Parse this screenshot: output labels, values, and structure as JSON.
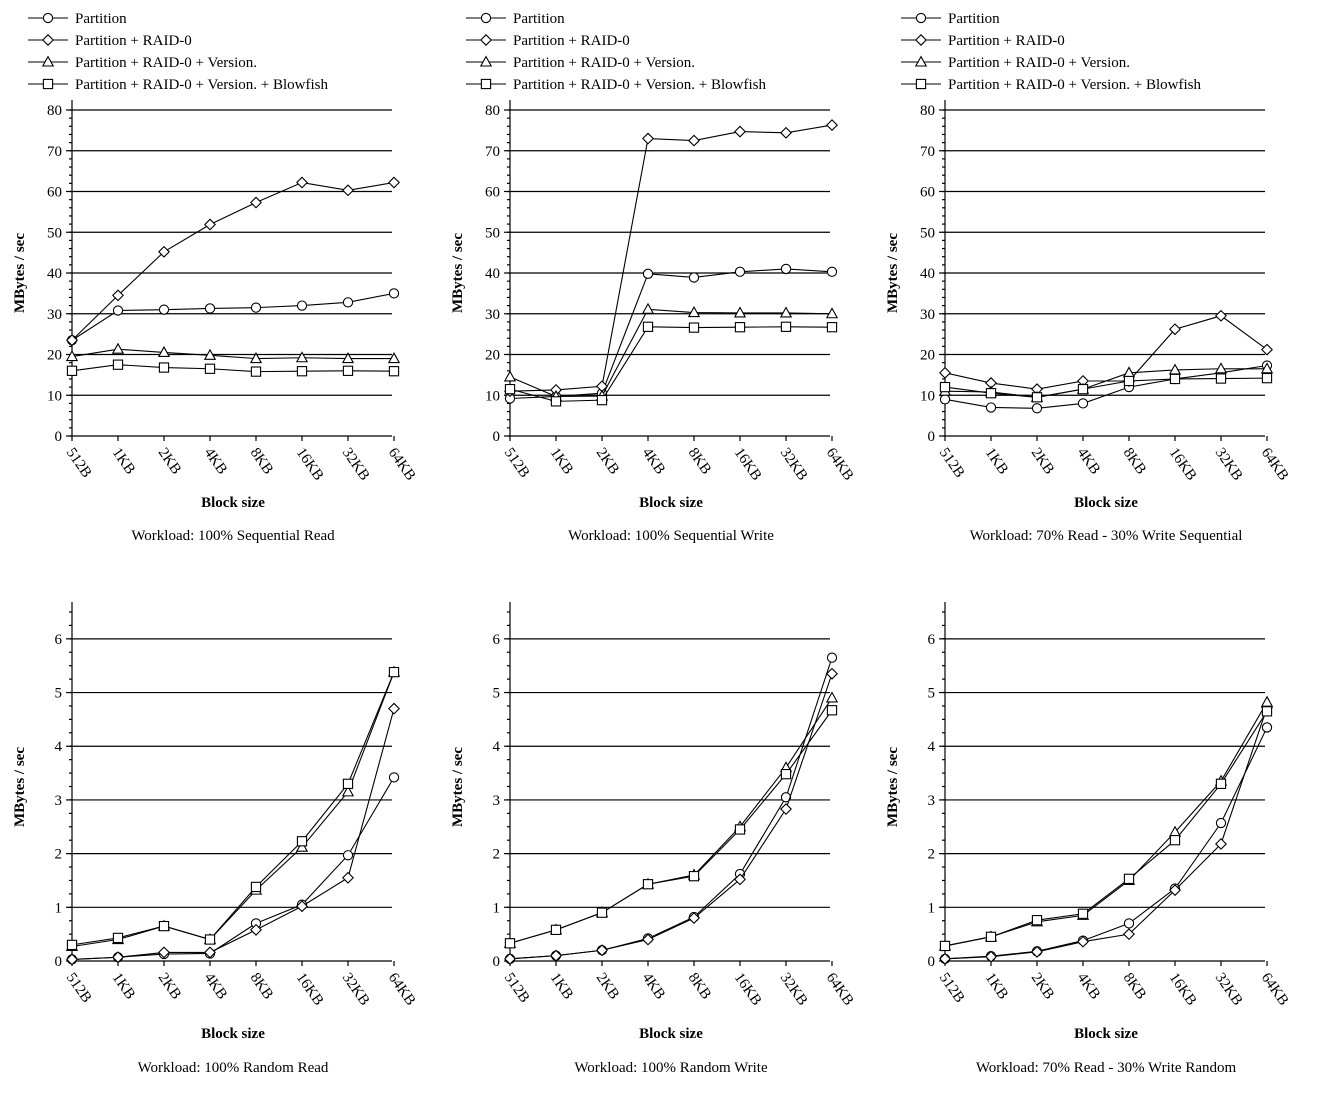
{
  "legend": [
    "Partition",
    "Partition + RAID-0",
    "Partition + RAID-0 + Version.",
    "Partition + RAID-0 + Version. + Blowfish"
  ],
  "markers": [
    "circle",
    "diamond",
    "triangle",
    "square"
  ],
  "chart_data": [
    {
      "type": "line",
      "caption": "Workload: 100% Sequential Read",
      "xlabel": "Block size",
      "ylabel": "MBytes / sec",
      "categories": [
        "512B",
        "1KB",
        "2KB",
        "4KB",
        "8KB",
        "16KB",
        "32KB",
        "64KB"
      ],
      "yticks": [
        0,
        10,
        20,
        30,
        40,
        50,
        60,
        70,
        80
      ],
      "ylim": [
        0,
        80
      ],
      "grid": true,
      "legend_position": "top",
      "series": [
        {
          "name": "Partition",
          "values": [
            23.5,
            30.8,
            31.0,
            31.3,
            31.5,
            32.0,
            32.8,
            35.0
          ]
        },
        {
          "name": "Partition + RAID-0",
          "values": [
            23.5,
            34.5,
            45.2,
            51.9,
            57.3,
            62.2,
            60.3,
            62.2
          ]
        },
        {
          "name": "Partition + RAID-0 + Version.",
          "values": [
            19.5,
            21.3,
            20.5,
            19.8,
            19.0,
            19.2,
            19.0,
            19.0
          ]
        },
        {
          "name": "Partition + RAID-0 + Version. + Blowfish",
          "values": [
            16.0,
            17.5,
            16.8,
            16.5,
            15.8,
            15.9,
            16.0,
            15.9
          ]
        }
      ]
    },
    {
      "type": "line",
      "caption": "Workload: 100% Sequential Write",
      "xlabel": "Block size",
      "ylabel": "MBytes / sec",
      "categories": [
        "512B",
        "1KB",
        "2KB",
        "4KB",
        "8KB",
        "16KB",
        "32KB",
        "64KB"
      ],
      "yticks": [
        0,
        10,
        20,
        30,
        40,
        50,
        60,
        70,
        80
      ],
      "ylim": [
        0,
        80
      ],
      "grid": true,
      "legend_position": "top",
      "series": [
        {
          "name": "Partition",
          "values": [
            9.2,
            9.7,
            10.5,
            39.8,
            38.9,
            40.3,
            41.0,
            40.3
          ]
        },
        {
          "name": "Partition + RAID-0",
          "values": [
            11.0,
            11.3,
            12.2,
            73.0,
            72.5,
            74.7,
            74.4,
            76.3
          ]
        },
        {
          "name": "Partition + RAID-0 + Version.",
          "values": [
            14.5,
            9.7,
            9.8,
            31.1,
            30.3,
            30.2,
            30.2,
            30.0
          ]
        },
        {
          "name": "Partition + RAID-0 + Version. + Blowfish",
          "values": [
            11.5,
            8.5,
            8.8,
            26.8,
            26.6,
            26.7,
            26.8,
            26.7
          ]
        }
      ]
    },
    {
      "type": "line",
      "caption": "Workload: 70% Read - 30% Write Sequential",
      "xlabel": "Block size",
      "ylabel": "MBytes / sec",
      "categories": [
        "512B",
        "1KB",
        "2KB",
        "4KB",
        "8KB",
        "16KB",
        "32KB",
        "64KB"
      ],
      "yticks": [
        0,
        10,
        20,
        30,
        40,
        50,
        60,
        70,
        80
      ],
      "ylim": [
        0,
        80
      ],
      "grid": true,
      "legend_position": "top",
      "series": [
        {
          "name": "Partition",
          "values": [
            9.0,
            7.0,
            6.8,
            8.0,
            12.0,
            14.0,
            15.5,
            17.3
          ]
        },
        {
          "name": "Partition + RAID-0",
          "values": [
            15.5,
            13.0,
            11.5,
            13.5,
            13.5,
            26.2,
            29.5,
            21.2
          ]
        },
        {
          "name": "Partition + RAID-0 + Version.",
          "values": [
            11.0,
            10.8,
            9.5,
            11.5,
            15.5,
            16.2,
            16.5,
            16.5
          ]
        },
        {
          "name": "Partition + RAID-0 + Version. + Blowfish",
          "values": [
            12.0,
            10.5,
            9.5,
            11.5,
            13.5,
            14.0,
            14.1,
            14.2
          ]
        }
      ]
    },
    {
      "type": "line",
      "caption": "Workload: 100% Random Read",
      "xlabel": "Block size",
      "ylabel": "MBytes / sec",
      "categories": [
        "512B",
        "1KB",
        "2KB",
        "4KB",
        "8KB",
        "16KB",
        "32KB",
        "64KB"
      ],
      "yticks": [
        0,
        1,
        2,
        3,
        4,
        5,
        6
      ],
      "ylim": [
        0,
        6.5
      ],
      "grid": true,
      "legend_position": "top",
      "series": [
        {
          "name": "Partition",
          "values": [
            0.03,
            0.07,
            0.13,
            0.14,
            0.7,
            1.05,
            1.97,
            3.42
          ]
        },
        {
          "name": "Partition + RAID-0",
          "values": [
            0.03,
            0.07,
            0.16,
            0.16,
            0.58,
            1.02,
            1.55,
            4.7
          ]
        },
        {
          "name": "Partition + RAID-0 + Version.",
          "values": [
            0.27,
            0.4,
            0.65,
            0.4,
            1.32,
            2.12,
            3.15,
            5.38
          ]
        },
        {
          "name": "Partition + RAID-0 + Version. + Blowfish",
          "values": [
            0.3,
            0.43,
            0.65,
            0.4,
            1.38,
            2.23,
            3.3,
            5.38
          ]
        }
      ]
    },
    {
      "type": "line",
      "caption": "Workload: 100% Random Write",
      "xlabel": "Block size",
      "ylabel": "MBytes / sec",
      "categories": [
        "512B",
        "1KB",
        "2KB",
        "4KB",
        "8KB",
        "16KB",
        "32KB",
        "64KB"
      ],
      "yticks": [
        0,
        1,
        2,
        3,
        4,
        5,
        6
      ],
      "ylim": [
        0,
        6.5
      ],
      "grid": true,
      "legend_position": "top",
      "series": [
        {
          "name": "Partition",
          "values": [
            0.04,
            0.1,
            0.2,
            0.42,
            0.82,
            1.62,
            3.05,
            5.65
          ]
        },
        {
          "name": "Partition + RAID-0",
          "values": [
            0.04,
            0.1,
            0.2,
            0.4,
            0.8,
            1.52,
            2.83,
            5.35
          ]
        },
        {
          "name": "Partition + RAID-0 + Version.",
          "values": [
            0.33,
            0.58,
            0.9,
            1.43,
            1.6,
            2.5,
            3.6,
            4.9
          ]
        },
        {
          "name": "Partition + RAID-0 + Version. + Blowfish",
          "values": [
            0.33,
            0.58,
            0.9,
            1.43,
            1.58,
            2.45,
            3.48,
            4.67
          ]
        }
      ]
    },
    {
      "type": "line",
      "caption": "Workload: 70% Read - 30% Write Random",
      "xlabel": "Block size",
      "ylabel": "MBytes / sec",
      "categories": [
        "512B",
        "1KB",
        "2KB",
        "4KB",
        "8KB",
        "16KB",
        "32KB",
        "64KB"
      ],
      "yticks": [
        0,
        1,
        2,
        3,
        4,
        5,
        6
      ],
      "ylim": [
        0,
        6.5
      ],
      "grid": true,
      "legend_position": "top",
      "series": [
        {
          "name": "Partition",
          "values": [
            0.04,
            0.09,
            0.18,
            0.38,
            0.7,
            1.35,
            2.57,
            4.35
          ]
        },
        {
          "name": "Partition + RAID-0",
          "values": [
            0.04,
            0.08,
            0.17,
            0.36,
            0.5,
            1.32,
            2.18,
            4.72
          ]
        },
        {
          "name": "Partition + RAID-0 + Version.",
          "values": [
            0.28,
            0.45,
            0.73,
            0.85,
            1.5,
            2.4,
            3.35,
            4.82
          ]
        },
        {
          "name": "Partition + RAID-0 + Version. + Blowfish",
          "values": [
            0.28,
            0.45,
            0.76,
            0.88,
            1.53,
            2.25,
            3.3,
            4.65
          ]
        }
      ]
    }
  ]
}
